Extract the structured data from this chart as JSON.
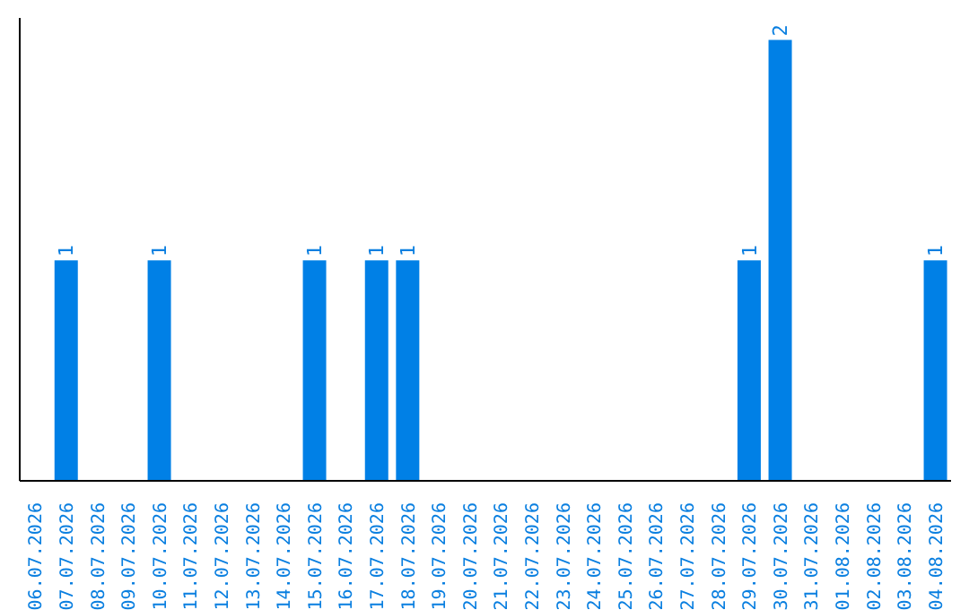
{
  "chart_data": {
    "type": "bar",
    "categories": [
      "06.07.2026",
      "07.07.2026",
      "08.07.2026",
      "09.07.2026",
      "10.07.2026",
      "11.07.2026",
      "12.07.2026",
      "13.07.2026",
      "14.07.2026",
      "15.07.2026",
      "16.07.2026",
      "17.07.2026",
      "18.07.2026",
      "19.07.2026",
      "20.07.2026",
      "21.07.2026",
      "22.07.2026",
      "23.07.2026",
      "24.07.2026",
      "25.07.2026",
      "26.07.2026",
      "27.07.2026",
      "28.07.2026",
      "29.07.2026",
      "30.07.2026",
      "31.07.2026",
      "01.08.2026",
      "02.08.2026",
      "03.08.2026",
      "04.08.2026"
    ],
    "values": [
      0,
      1,
      0,
      0,
      1,
      0,
      0,
      0,
      0,
      1,
      0,
      1,
      1,
      0,
      0,
      0,
      0,
      0,
      0,
      0,
      0,
      0,
      0,
      1,
      2,
      0,
      0,
      0,
      0,
      1
    ],
    "value_labels": [
      null,
      "1",
      null,
      null,
      "1",
      null,
      null,
      null,
      null,
      "1",
      null,
      "1",
      "1",
      null,
      null,
      null,
      null,
      null,
      null,
      null,
      null,
      null,
      null,
      "1",
      "2",
      null,
      null,
      null,
      null,
      "1"
    ],
    "color": "#0080e6",
    "ylim": [
      0,
      2.1
    ],
    "tick_labels": "x",
    "grid": false,
    "legend": false
  }
}
